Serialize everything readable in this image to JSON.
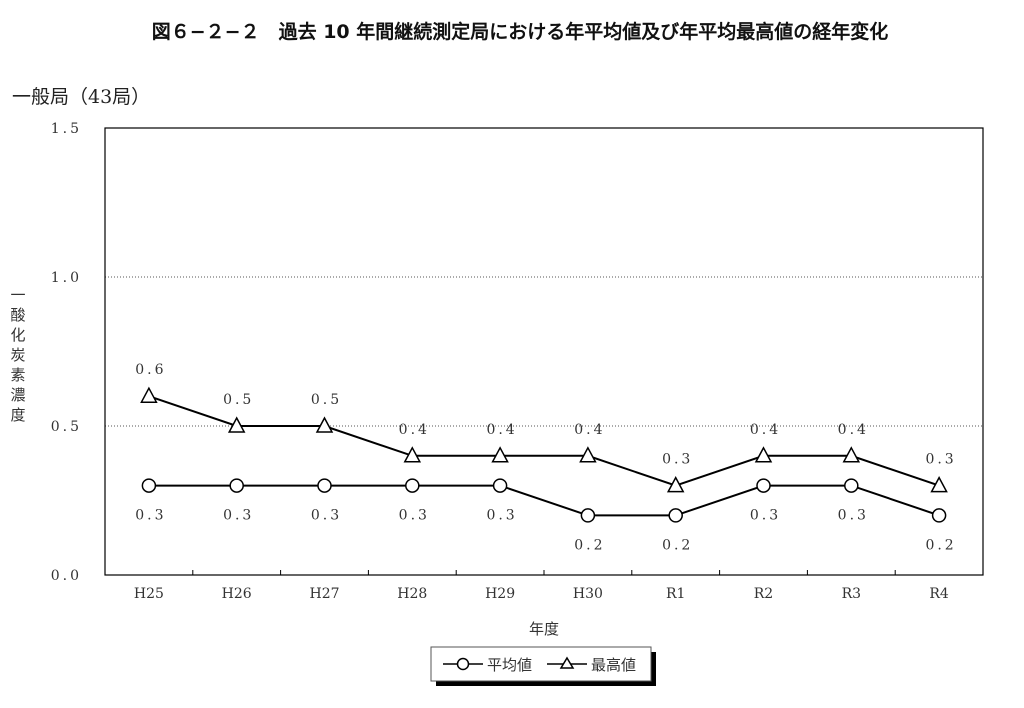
{
  "chart_data": {
    "type": "line",
    "title": "図６−２−２　過去 10 年間継続測定局における年平均値及び年平均最高値の経年変化",
    "subtitle": "一般局（43局）",
    "xlabel": "年度",
    "ylabel": "一酸化炭素濃度",
    "categories": [
      "H25",
      "H26",
      "H27",
      "H28",
      "H29",
      "H30",
      "R1",
      "R2",
      "R3",
      "R4"
    ],
    "ylim": [
      0,
      1.5
    ],
    "yticks": [
      "0.0",
      "0.5",
      "1.0",
      "1.5"
    ],
    "grid": "horizontal dotted",
    "legend_placement": "bottom-center",
    "series": [
      {
        "name": "平均値",
        "marker": "circle",
        "values": [
          0.3,
          0.3,
          0.3,
          0.3,
          0.3,
          0.2,
          0.2,
          0.3,
          0.3,
          0.2
        ],
        "labels": [
          "0.3",
          "0.3",
          "0.3",
          "0.3",
          "0.3",
          "0.2",
          "0.2",
          "0.3",
          "0.3",
          "0.2"
        ]
      },
      {
        "name": "最高値",
        "marker": "triangle",
        "values": [
          0.6,
          0.5,
          0.5,
          0.4,
          0.4,
          0.4,
          0.3,
          0.4,
          0.4,
          0.3
        ],
        "labels": [
          "0.6",
          "0.5",
          "0.5",
          "0.4",
          "0.4",
          "0.4",
          "0.3",
          "0.4",
          "0.4",
          "0.3"
        ]
      }
    ],
    "colors": {
      "line": "#000000",
      "marker_fill": "#ffffff"
    }
  }
}
